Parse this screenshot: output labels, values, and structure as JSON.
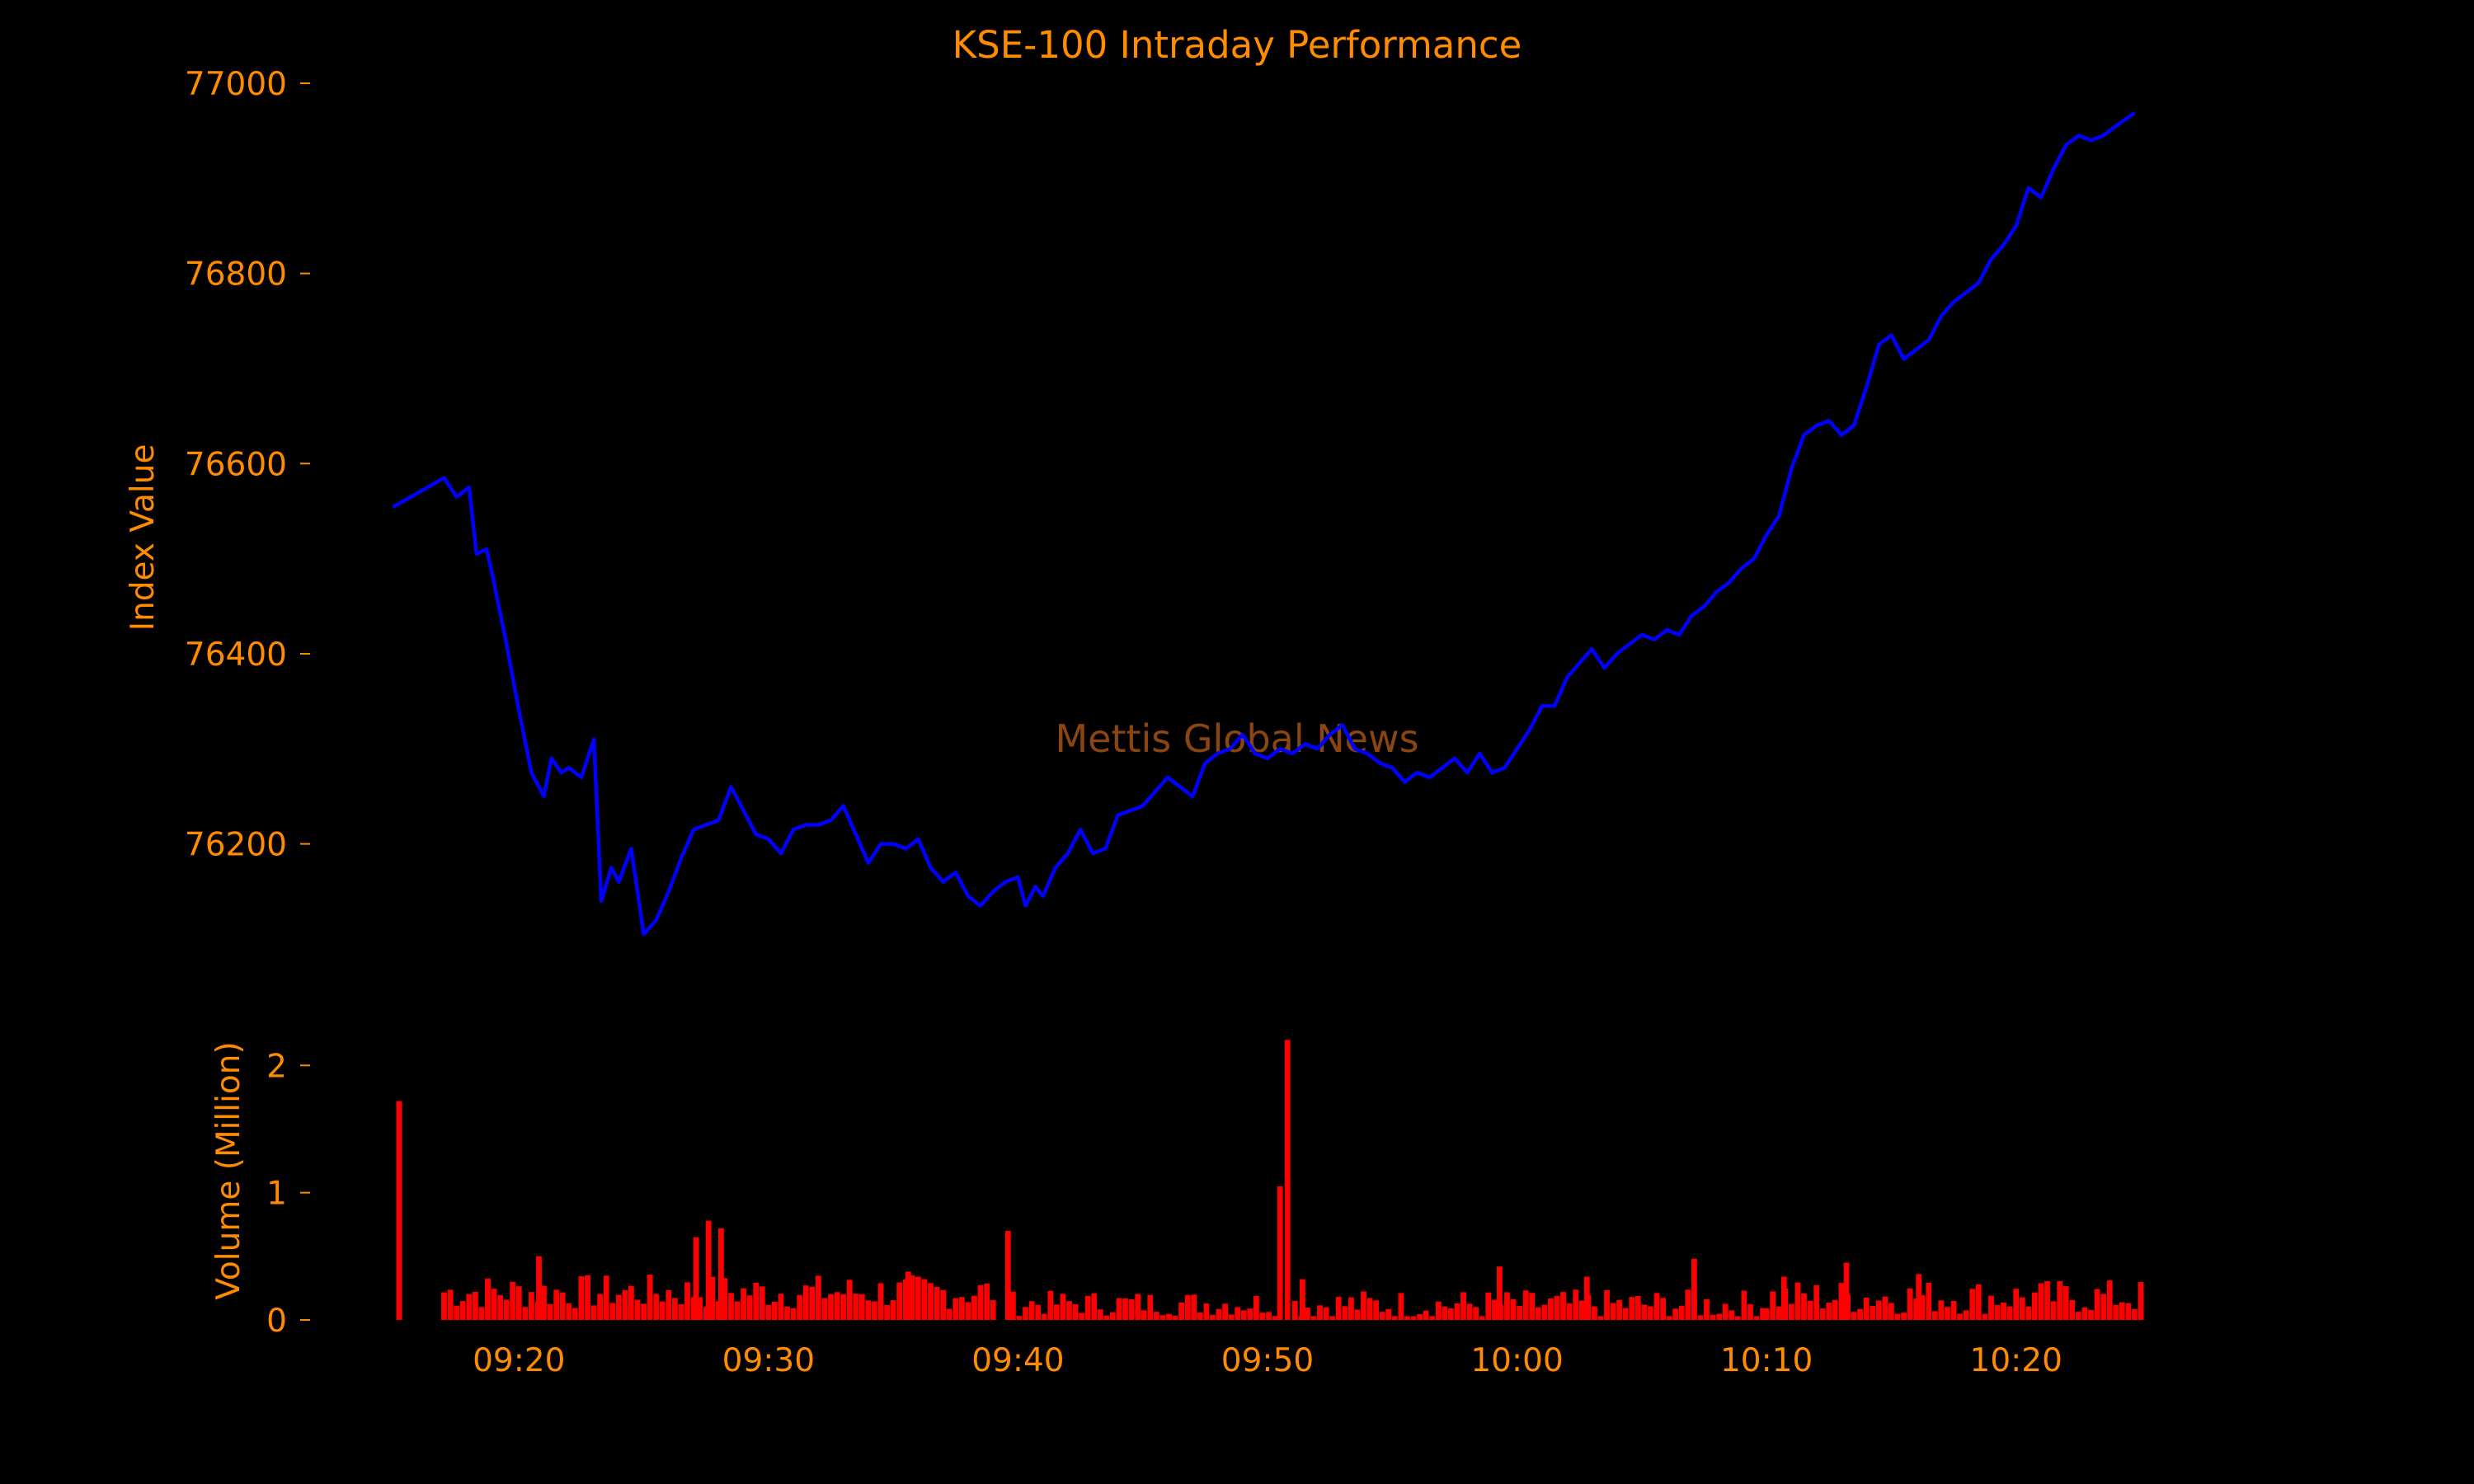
{
  "colors": {
    "background": "#000000",
    "text": "#ff8c00",
    "price_line": "#0000ff",
    "volume_bar": "#ff0000",
    "watermark": "#8b4513"
  },
  "watermark": "Mettis Global News",
  "chart_data": [
    {
      "type": "line",
      "title": "KSE-100 Intraday Performance",
      "xlabel": "",
      "ylabel": "Index Value",
      "xlim": [
        "09:15",
        "10:25"
      ],
      "ylim": [
        76080,
        77000
      ],
      "yticks": [
        76200,
        76400,
        76600,
        76800,
        77000
      ],
      "grid": false,
      "series": [
        {
          "points": [
            [
              "09:15",
              76555
            ],
            [
              "09:16",
              76570
            ],
            [
              "09:17",
              76585
            ],
            [
              "09:17.5",
              76565
            ],
            [
              "09:18",
              76575
            ],
            [
              "09:18.3",
              76505
            ],
            [
              "09:18.7",
              76510
            ],
            [
              "09:19",
              76475
            ],
            [
              "09:19.5",
              76410
            ],
            [
              "09:20",
              76340
            ],
            [
              "09:20.5",
              76275
            ],
            [
              "09:21",
              76250
            ],
            [
              "09:21.3",
              76290
            ],
            [
              "09:21.7",
              76275
            ],
            [
              "09:22",
              76280
            ],
            [
              "09:22.5",
              76270
            ],
            [
              "09:23",
              76310
            ],
            [
              "09:23.3",
              76140
            ],
            [
              "09:23.7",
              76175
            ],
            [
              "09:24",
              76160
            ],
            [
              "09:24.5",
              76195
            ],
            [
              "09:25",
              76105
            ],
            [
              "09:25.5",
              76120
            ],
            [
              "09:26",
              76150
            ],
            [
              "09:26.5",
              76185
            ],
            [
              "09:27",
              76215
            ],
            [
              "09:27.5",
              76220
            ],
            [
              "09:28",
              76225
            ],
            [
              "09:28.5",
              76260
            ],
            [
              "09:29",
              76235
            ],
            [
              "09:29.5",
              76210
            ],
            [
              "09:30",
              76205
            ],
            [
              "09:30.5",
              76190
            ],
            [
              "09:31",
              76215
            ],
            [
              "09:31.5",
              76220
            ],
            [
              "09:32",
              76220
            ],
            [
              "09:32.5",
              76225
            ],
            [
              "09:33",
              76240
            ],
            [
              "09:33.5",
              76210
            ],
            [
              "09:34",
              76180
            ],
            [
              "09:34.5",
              76200
            ],
            [
              "09:35",
              76200
            ],
            [
              "09:35.5",
              76195
            ],
            [
              "09:36",
              76205
            ],
            [
              "09:36.5",
              76175
            ],
            [
              "09:37",
              76160
            ],
            [
              "09:37.5",
              76170
            ],
            [
              "09:38",
              76145
            ],
            [
              "09:38.5",
              76135
            ],
            [
              "09:39",
              76150
            ],
            [
              "09:39.5",
              76160
            ],
            [
              "09:40",
              76165
            ],
            [
              "09:40.3",
              76135
            ],
            [
              "09:40.7",
              76155
            ],
            [
              "09:41",
              76145
            ],
            [
              "09:41.5",
              76175
            ],
            [
              "09:42",
              76190
            ],
            [
              "09:42.5",
              76215
            ],
            [
              "09:43",
              76190
            ],
            [
              "09:43.5",
              76195
            ],
            [
              "09:44",
              76230
            ],
            [
              "09:44.5",
              76235
            ],
            [
              "09:45",
              76240
            ],
            [
              "09:45.5",
              76255
            ],
            [
              "09:46",
              76270
            ],
            [
              "09:46.5",
              76260
            ],
            [
              "09:47",
              76250
            ],
            [
              "09:47.5",
              76285
            ],
            [
              "09:48",
              76295
            ],
            [
              "09:48.5",
              76300
            ],
            [
              "09:49",
              76315
            ],
            [
              "09:49.5",
              76295
            ],
            [
              "09:50",
              76290
            ],
            [
              "09:50.5",
              76300
            ],
            [
              "09:51",
              76295
            ],
            [
              "09:51.5",
              76305
            ],
            [
              "09:52",
              76300
            ],
            [
              "09:52.5",
              76315
            ],
            [
              "09:53",
              76325
            ],
            [
              "09:53.5",
              76300
            ],
            [
              "09:54",
              76295
            ],
            [
              "09:54.5",
              76285
            ],
            [
              "09:55",
              76280
            ],
            [
              "09:55.5",
              76265
            ],
            [
              "09:56",
              76275
            ],
            [
              "09:56.5",
              76270
            ],
            [
              "09:57",
              76280
            ],
            [
              "09:57.5",
              76290
            ],
            [
              "09:58",
              76275
            ],
            [
              "09:58.5",
              76295
            ],
            [
              "09:59",
              76275
            ],
            [
              "09:59.5",
              76280
            ],
            [
              "10:00",
              76300
            ],
            [
              "10:00.5",
              76320
            ],
            [
              "10:01",
              76345
            ],
            [
              "10:01.5",
              76345
            ],
            [
              "10:02",
              76375
            ],
            [
              "10:02.5",
              76390
            ],
            [
              "10:03",
              76405
            ],
            [
              "10:03.5",
              76385
            ],
            [
              "10:04",
              76400
            ],
            [
              "10:04.5",
              76410
            ],
            [
              "10:05",
              76420
            ],
            [
              "10:05.5",
              76415
            ],
            [
              "10:06",
              76425
            ],
            [
              "10:06.5",
              76420
            ],
            [
              "10:07",
              76440
            ],
            [
              "10:07.5",
              76450
            ],
            [
              "10:08",
              76465
            ],
            [
              "10:08.5",
              76475
            ],
            [
              "10:09",
              76490
            ],
            [
              "10:09.5",
              76500
            ],
            [
              "10:10",
              76525
            ],
            [
              "10:10.5",
              76545
            ],
            [
              "10:11",
              76595
            ],
            [
              "10:11.5",
              76630
            ],
            [
              "10:12",
              76640
            ],
            [
              "10:12.5",
              76645
            ],
            [
              "10:13",
              76630
            ],
            [
              "10:13.5",
              76640
            ],
            [
              "10:14",
              76680
            ],
            [
              "10:14.5",
              76725
            ],
            [
              "10:15",
              76735
            ],
            [
              "10:15.5",
              76710
            ],
            [
              "10:16",
              76720
            ],
            [
              "10:16.5",
              76730
            ],
            [
              "10:17",
              76755
            ],
            [
              "10:17.5",
              76770
            ],
            [
              "10:18",
              76780
            ],
            [
              "10:18.5",
              76790
            ],
            [
              "10:19",
              76815
            ],
            [
              "10:19.5",
              76830
            ],
            [
              "10:20",
              76850
            ],
            [
              "10:20.5",
              76890
            ],
            [
              "10:21",
              76880
            ],
            [
              "10:21.5",
              76910
            ],
            [
              "10:22",
              76935
            ],
            [
              "10:22.5",
              76945
            ],
            [
              "10:23",
              76940
            ],
            [
              "10:23.5",
              76945
            ],
            [
              "10:24",
              76955
            ],
            [
              "10:24.7",
              76968
            ]
          ]
        }
      ]
    },
    {
      "type": "bar",
      "xlabel": "",
      "ylabel": "Volume (Million)",
      "xlim": [
        "09:15",
        "10:25"
      ],
      "ylim": [
        0,
        2.3
      ],
      "yticks": [
        0,
        1,
        2
      ],
      "xticks": [
        "09:20",
        "09:30",
        "09:40",
        "09:50",
        "10:00",
        "10:10",
        "10:20"
      ],
      "grid": false,
      "bar_minutes": 0.25,
      "highlights": [
        [
          "09:15.2",
          1.72
        ],
        [
          "09:39.6",
          0.7
        ],
        [
          "09:50.5",
          1.05
        ],
        [
          "09:50.8",
          2.2
        ],
        [
          "09:27.6",
          0.78
        ],
        [
          "09:28.1",
          0.72
        ],
        [
          "09:27.1",
          0.65
        ],
        [
          "09:59.3",
          0.42
        ],
        [
          "10:07.1",
          0.48
        ],
        [
          "10:13.2",
          0.45
        ],
        [
          "10:16.1",
          0.36
        ],
        [
          "09:20.8",
          0.5
        ],
        [
          "09:51.4",
          0.32
        ],
        [
          "09:35.6",
          0.38
        ],
        [
          "10:10.7",
          0.34
        ],
        [
          "10:02.8",
          0.34
        ]
      ],
      "segments": [
        [
          "09:17",
          "09:39",
          0.22,
          0.14
        ],
        [
          "09:39.8",
          "09:50.3",
          0.13,
          0.1
        ],
        [
          "09:51.1",
          "10:10",
          0.12,
          0.12
        ],
        [
          "10:10",
          "10:25",
          0.18,
          0.14
        ]
      ]
    }
  ]
}
